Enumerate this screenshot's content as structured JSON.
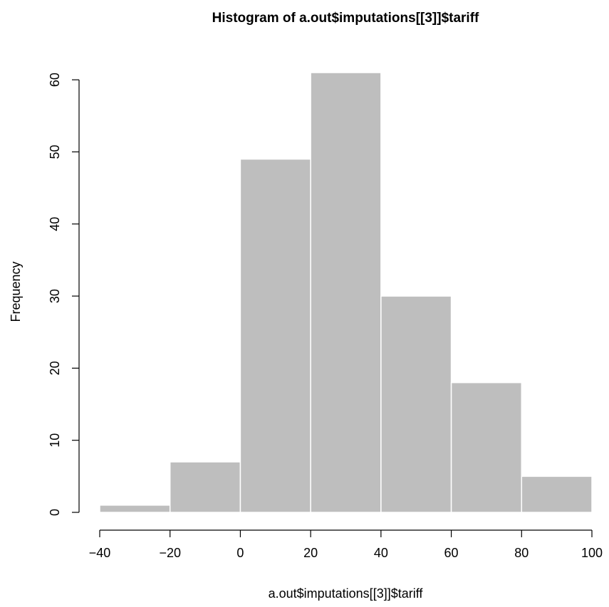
{
  "chart_data": {
    "type": "bar",
    "subtype": "histogram",
    "title": "Histogram of a.out$imputations[[3]]$tariff",
    "xlabel": "a.out$imputations[[3]]$tariff",
    "ylabel": "Frequency",
    "bins": [
      {
        "from": -40,
        "to": -20,
        "count": 1
      },
      {
        "from": -20,
        "to": 0,
        "count": 7
      },
      {
        "from": 0,
        "to": 20,
        "count": 49
      },
      {
        "from": 20,
        "to": 40,
        "count": 61
      },
      {
        "from": 40,
        "to": 60,
        "count": 30
      },
      {
        "from": 60,
        "to": 80,
        "count": 18
      },
      {
        "from": 80,
        "to": 100,
        "count": 5
      }
    ],
    "xlim": [
      -40,
      100
    ],
    "ylim": [
      0,
      61
    ],
    "x_ticks": [
      "−40",
      "−20",
      "0",
      "20",
      "40",
      "60",
      "80",
      "100"
    ],
    "x_tick_values": [
      -40,
      -20,
      0,
      20,
      40,
      60,
      80,
      100
    ],
    "y_ticks": [
      "0",
      "10",
      "20",
      "30",
      "40",
      "50",
      "60"
    ],
    "y_tick_values": [
      0,
      10,
      20,
      30,
      40,
      50,
      60
    ],
    "bar_color": "#bebebe",
    "grid": false,
    "legend": "none"
  }
}
